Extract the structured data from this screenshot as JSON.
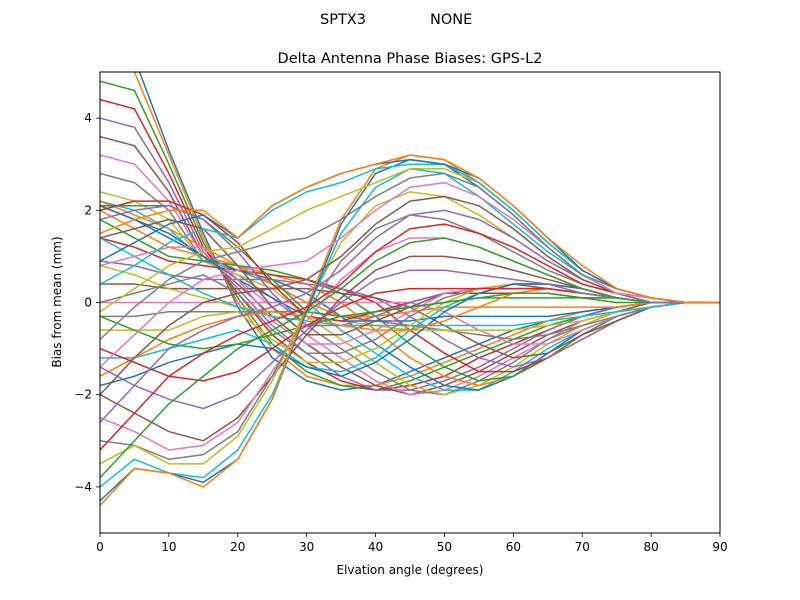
{
  "figure": {
    "suptitle_left": "SPTX3",
    "suptitle_right": "NONE"
  },
  "chart_data": {
    "type": "line",
    "title": "Delta Antenna Phase Biases: GPS-L2",
    "xlabel": "Elvation angle (degrees)",
    "ylabel": "Bias from mean (mm)",
    "xlim": [
      0,
      90
    ],
    "ylim": [
      -5,
      5
    ],
    "x_ticks": [
      "0",
      "10",
      "20",
      "30",
      "40",
      "50",
      "60",
      "70",
      "80",
      "90"
    ],
    "y_ticks": [
      "-4",
      "-2",
      "0",
      "2",
      "4"
    ],
    "grid": false,
    "legend": "none",
    "x": [
      0,
      5,
      10,
      15,
      20,
      25,
      30,
      35,
      40,
      45,
      50,
      55,
      60,
      65,
      70,
      75,
      80,
      85,
      90
    ],
    "palette": [
      "#1f77b4",
      "#ff7f0e",
      "#2ca02c",
      "#d62728",
      "#9467bd",
      "#8c564b",
      "#e377c2",
      "#7f7f7f",
      "#bcbd22",
      "#17becf"
    ],
    "series": [
      {
        "values": [
          5.6,
          5.3,
          3.3,
          1.5,
          -0.1,
          -1.2,
          -1.7,
          -1.9,
          -1.8,
          -1.5,
          -1.2,
          -0.9,
          -0.6,
          -0.4,
          -0.2,
          -0.1,
          0.0,
          0.0,
          0.0
        ]
      },
      {
        "values": [
          5.2,
          5.0,
          3.2,
          1.4,
          0.0,
          -1.0,
          -1.6,
          -1.8,
          -1.8,
          -1.6,
          -1.3,
          -1.0,
          -0.7,
          -0.4,
          -0.2,
          -0.1,
          0.0,
          0.0,
          0.0
        ]
      },
      {
        "values": [
          4.8,
          4.6,
          3.0,
          1.3,
          0.1,
          -0.9,
          -1.5,
          -1.8,
          -1.9,
          -1.7,
          -1.4,
          -1.1,
          -0.8,
          -0.5,
          -0.3,
          -0.1,
          0.0,
          0.0,
          0.0
        ]
      },
      {
        "values": [
          4.4,
          4.2,
          2.8,
          1.2,
          0.2,
          -0.7,
          -1.3,
          -1.7,
          -1.9,
          -1.8,
          -1.6,
          -1.2,
          -0.9,
          -0.6,
          -0.3,
          -0.1,
          0.0,
          0.0,
          0.0
        ]
      },
      {
        "values": [
          4.0,
          3.8,
          2.6,
          1.1,
          0.3,
          -0.5,
          -1.1,
          -1.6,
          -1.9,
          -1.9,
          -1.7,
          -1.4,
          -1.0,
          -0.6,
          -0.3,
          -0.1,
          0.0,
          0.0,
          0.0
        ]
      },
      {
        "values": [
          3.6,
          3.4,
          2.4,
          1.0,
          0.4,
          -0.3,
          -0.9,
          -1.4,
          -1.8,
          -2.0,
          -1.8,
          -1.5,
          -1.1,
          -0.7,
          -0.4,
          -0.2,
          0.0,
          0.0,
          0.0
        ]
      },
      {
        "values": [
          3.2,
          3.0,
          2.2,
          1.0,
          0.5,
          -0.1,
          -0.7,
          -1.2,
          -1.7,
          -2.0,
          -1.9,
          -1.6,
          -1.2,
          -0.8,
          -0.4,
          -0.2,
          -0.1,
          0.0,
          0.0
        ]
      },
      {
        "values": [
          2.8,
          2.6,
          2.0,
          0.9,
          0.6,
          0.1,
          -0.5,
          -1.0,
          -1.5,
          -1.9,
          -2.0,
          -1.7,
          -1.3,
          -0.8,
          -0.5,
          -0.2,
          -0.1,
          0.0,
          0.0
        ]
      },
      {
        "values": [
          2.4,
          2.2,
          1.8,
          0.9,
          0.6,
          0.3,
          -0.3,
          -0.8,
          -1.3,
          -1.8,
          -2.0,
          -1.8,
          -1.4,
          -0.9,
          -0.5,
          -0.2,
          -0.1,
          0.0,
          0.0
        ]
      },
      {
        "values": [
          2.2,
          2.0,
          1.6,
          0.9,
          0.7,
          0.4,
          0.0,
          -0.6,
          -1.1,
          -1.6,
          -1.9,
          -1.9,
          -1.5,
          -1.0,
          -0.6,
          -0.3,
          -0.1,
          0.0,
          0.0
        ]
      },
      {
        "values": [
          2.1,
          1.8,
          1.4,
          1.0,
          0.7,
          0.5,
          0.2,
          -0.3,
          -0.9,
          -1.4,
          -1.8,
          -1.9,
          -1.6,
          -1.1,
          -0.6,
          -0.3,
          -0.1,
          0.0,
          0.0
        ]
      },
      {
        "values": [
          2.0,
          1.6,
          1.2,
          1.0,
          0.8,
          0.6,
          0.4,
          0.0,
          -0.6,
          -1.2,
          -1.6,
          -1.8,
          -1.6,
          -1.2,
          -0.7,
          -0.3,
          -0.1,
          0.0,
          0.0
        ]
      },
      {
        "values": [
          1.8,
          1.4,
          1.0,
          0.9,
          0.8,
          0.7,
          0.5,
          0.2,
          -0.3,
          -0.9,
          -1.4,
          -1.7,
          -1.6,
          -1.2,
          -0.7,
          -0.3,
          -0.1,
          0.0,
          0.0
        ]
      },
      {
        "values": [
          1.4,
          1.2,
          0.9,
          0.8,
          0.7,
          0.6,
          0.5,
          0.3,
          0.0,
          -0.6,
          -1.1,
          -1.5,
          -1.5,
          -1.2,
          -0.8,
          -0.4,
          -0.1,
          0.0,
          0.0
        ]
      },
      {
        "values": [
          0.9,
          0.8,
          0.6,
          0.5,
          0.5,
          0.5,
          0.4,
          0.3,
          0.1,
          -0.3,
          -0.8,
          -1.2,
          -1.4,
          -1.2,
          -0.8,
          -0.4,
          -0.1,
          0.0,
          0.0
        ]
      },
      {
        "values": [
          0.4,
          0.4,
          0.3,
          0.3,
          0.3,
          0.3,
          0.3,
          0.2,
          0.1,
          -0.1,
          -0.5,
          -0.9,
          -1.2,
          -1.1,
          -0.7,
          -0.4,
          -0.1,
          0.0,
          0.0
        ]
      },
      {
        "values": [
          0.0,
          0.0,
          0.0,
          0.0,
          0.0,
          0.0,
          0.0,
          0.0,
          0.0,
          0.0,
          -0.2,
          -0.6,
          -0.9,
          -0.9,
          -0.6,
          -0.3,
          -0.1,
          0.0,
          0.0
        ]
      },
      {
        "values": [
          -0.3,
          -0.3,
          -0.2,
          -0.2,
          -0.2,
          -0.2,
          -0.2,
          -0.3,
          -0.4,
          -0.5,
          -0.6,
          -0.7,
          -0.8,
          -0.7,
          -0.5,
          -0.3,
          -0.1,
          0.0,
          0.0
        ]
      },
      {
        "values": [
          0.8,
          0.6,
          0.3,
          0.1,
          -0.1,
          -0.2,
          -0.3,
          -0.4,
          -0.5,
          -0.6,
          -0.6,
          -0.6,
          -0.6,
          -0.5,
          -0.4,
          -0.2,
          -0.1,
          0.0,
          0.0
        ]
      },
      {
        "values": [
          1.4,
          1.0,
          0.6,
          0.2,
          -0.1,
          -0.3,
          -0.4,
          -0.5,
          -0.5,
          -0.5,
          -0.5,
          -0.5,
          -0.5,
          -0.4,
          -0.3,
          -0.2,
          -0.1,
          0.0,
          0.0
        ]
      },
      {
        "values": [
          2.1,
          1.8,
          1.5,
          1.0,
          0.5,
          0.1,
          -0.3,
          -0.4,
          -0.4,
          -0.4,
          -0.3,
          -0.3,
          -0.3,
          -0.3,
          -0.2,
          -0.1,
          0.0,
          0.0,
          0.0
        ]
      },
      {
        "values": [
          2.2,
          1.9,
          1.6,
          1.2,
          0.8,
          0.4,
          0.0,
          -0.3,
          -0.3,
          -0.2,
          -0.1,
          -0.1,
          -0.1,
          -0.1,
          -0.1,
          -0.1,
          0.0,
          0.0,
          0.0
        ]
      },
      {
        "values": [
          2.1,
          2.1,
          2.1,
          1.8,
          1.2,
          0.5,
          -0.2,
          -0.3,
          -0.2,
          -0.1,
          0.0,
          0.1,
          0.1,
          0.1,
          0.1,
          0.0,
          0.0,
          0.0,
          0.0
        ]
      },
      {
        "values": [
          2.0,
          2.2,
          2.2,
          1.9,
          1.3,
          0.4,
          -0.3,
          -0.4,
          -0.2,
          0.0,
          0.2,
          0.2,
          0.2,
          0.2,
          0.1,
          0.1,
          0.0,
          0.0,
          0.0
        ]
      },
      {
        "values": [
          1.8,
          2.0,
          2.1,
          1.8,
          1.1,
          0.2,
          -0.5,
          -0.5,
          -0.3,
          0.0,
          0.2,
          0.3,
          0.3,
          0.3,
          0.2,
          0.1,
          0.0,
          0.0,
          0.0
        ]
      },
      {
        "values": [
          1.4,
          1.6,
          1.8,
          1.6,
          0.8,
          -0.1,
          -0.7,
          -0.7,
          -0.4,
          -0.1,
          0.2,
          0.3,
          0.4,
          0.3,
          0.2,
          0.1,
          0.0,
          0.0,
          0.0
        ]
      },
      {
        "values": [
          0.8,
          1.0,
          1.2,
          1.2,
          0.5,
          -0.4,
          -0.9,
          -0.9,
          -0.6,
          -0.2,
          0.2,
          0.3,
          0.4,
          0.4,
          0.3,
          0.1,
          0.0,
          0.0,
          0.0
        ]
      },
      {
        "values": [
          0.0,
          0.2,
          0.4,
          0.6,
          0.2,
          -0.6,
          -1.1,
          -1.1,
          -0.8,
          -0.3,
          0.1,
          0.3,
          0.4,
          0.4,
          0.3,
          0.1,
          0.0,
          0.0,
          0.0
        ]
      },
      {
        "values": [
          -0.6,
          -0.6,
          -0.6,
          -0.3,
          -0.2,
          -0.8,
          -1.3,
          -1.3,
          -1.0,
          -0.5,
          0.0,
          0.3,
          0.4,
          0.4,
          0.3,
          0.1,
          0.0,
          0.0,
          0.0
        ]
      },
      {
        "values": [
          -1.2,
          -1.2,
          -1.0,
          -0.8,
          -0.6,
          -0.9,
          -1.4,
          -1.5,
          -1.2,
          -0.6,
          -0.1,
          0.2,
          0.4,
          0.4,
          0.3,
          0.1,
          0.0,
          0.0,
          0.0
        ]
      },
      {
        "values": [
          -1.8,
          -1.6,
          -1.3,
          -1.1,
          -0.9,
          -1.0,
          -1.4,
          -1.6,
          -1.3,
          -0.8,
          -0.2,
          0.2,
          0.4,
          0.4,
          0.3,
          0.1,
          0.0,
          0.0,
          0.0
        ]
      },
      {
        "values": [
          -1.6,
          -1.2,
          -0.8,
          -0.5,
          -0.3,
          -0.2,
          -0.3,
          -0.5,
          -0.6,
          -0.6,
          -0.4,
          -0.1,
          0.2,
          0.3,
          0.2,
          0.1,
          0.0,
          0.0,
          0.0
        ]
      },
      {
        "values": [
          -0.3,
          -0.6,
          -0.9,
          -1.0,
          -0.9,
          -0.7,
          -0.5,
          -0.3,
          -0.2,
          -0.1,
          0.0,
          0.1,
          0.2,
          0.2,
          0.1,
          0.1,
          0.0,
          0.0,
          0.0
        ]
      },
      {
        "values": [
          -1.0,
          -1.3,
          -1.6,
          -1.7,
          -1.5,
          -1.0,
          -0.5,
          -0.1,
          0.2,
          0.3,
          0.3,
          0.3,
          0.3,
          0.3,
          0.2,
          0.1,
          0.0,
          0.0,
          0.0
        ]
      },
      {
        "values": [
          -1.4,
          -1.8,
          -2.1,
          -2.3,
          -2.0,
          -1.3,
          -0.6,
          0.0,
          0.5,
          0.7,
          0.7,
          0.6,
          0.5,
          0.4,
          0.2,
          0.1,
          0.0,
          0.0,
          0.0
        ]
      },
      {
        "values": [
          -2.0,
          -2.4,
          -2.8,
          -3.0,
          -2.5,
          -1.6,
          -0.7,
          0.1,
          0.7,
          1.0,
          1.0,
          0.9,
          0.7,
          0.5,
          0.3,
          0.1,
          0.0,
          0.0,
          0.0
        ]
      },
      {
        "values": [
          -2.5,
          -2.8,
          -3.2,
          -3.1,
          -2.6,
          -1.5,
          -0.4,
          0.5,
          1.1,
          1.4,
          1.4,
          1.2,
          0.9,
          0.6,
          0.3,
          0.1,
          0.0,
          0.0,
          0.0
        ]
      },
      {
        "values": [
          -3.0,
          -3.1,
          -3.4,
          -3.3,
          -2.8,
          -1.6,
          -0.2,
          0.9,
          1.6,
          1.9,
          1.8,
          1.5,
          1.1,
          0.7,
          0.4,
          0.2,
          0.0,
          0.0,
          0.0
        ]
      },
      {
        "values": [
          -3.5,
          -3.1,
          -3.5,
          -3.5,
          -2.9,
          -1.7,
          -0.1,
          1.3,
          2.1,
          2.4,
          2.3,
          1.9,
          1.4,
          0.9,
          0.5,
          0.2,
          0.0,
          0.0,
          0.0
        ]
      },
      {
        "values": [
          -4.0,
          -3.4,
          -3.7,
          -3.8,
          -3.2,
          -2.0,
          -0.2,
          1.5,
          2.5,
          2.9,
          2.8,
          2.3,
          1.7,
          1.1,
          0.6,
          0.2,
          0.1,
          0.0,
          0.0
        ]
      },
      {
        "values": [
          -4.3,
          -3.6,
          -3.7,
          -3.9,
          -3.4,
          -2.1,
          -0.2,
          1.7,
          2.8,
          3.1,
          3.0,
          2.5,
          1.9,
          1.2,
          0.6,
          0.3,
          0.1,
          0.0,
          0.0
        ]
      },
      {
        "values": [
          -4.4,
          -3.6,
          -3.7,
          -4.0,
          -3.4,
          -2.1,
          -0.1,
          1.8,
          2.9,
          3.2,
          3.1,
          2.6,
          2.0,
          1.3,
          0.7,
          0.3,
          0.1,
          0.0,
          0.0
        ]
      },
      {
        "values": [
          -3.8,
          -3.0,
          -2.2,
          -1.6,
          -1.0,
          -0.6,
          -0.2,
          0.3,
          0.9,
          1.3,
          1.4,
          1.2,
          0.9,
          0.6,
          0.3,
          0.1,
          0.0,
          0.0,
          0.0
        ]
      },
      {
        "values": [
          -3.2,
          -2.4,
          -1.6,
          -1.1,
          -0.7,
          -0.4,
          -0.1,
          0.4,
          1.1,
          1.6,
          1.7,
          1.5,
          1.2,
          0.8,
          0.4,
          0.2,
          0.0,
          0.0,
          0.0
        ]
      },
      {
        "values": [
          -2.6,
          -1.8,
          -1.0,
          -0.6,
          -0.3,
          -0.1,
          0.2,
          0.7,
          1.4,
          1.9,
          2.0,
          1.8,
          1.4,
          0.9,
          0.5,
          0.2,
          0.0,
          0.0,
          0.0
        ]
      },
      {
        "values": [
          -2.0,
          -1.2,
          -0.5,
          0.0,
          0.2,
          0.3,
          0.5,
          1.0,
          1.7,
          2.2,
          2.3,
          2.1,
          1.6,
          1.0,
          0.5,
          0.2,
          0.1,
          0.0,
          0.0
        ]
      },
      {
        "values": [
          -1.4,
          -0.7,
          0.0,
          0.5,
          0.7,
          0.8,
          0.9,
          1.4,
          2.0,
          2.5,
          2.6,
          2.3,
          1.8,
          1.2,
          0.6,
          0.2,
          0.1,
          0.0,
          0.0
        ]
      },
      {
        "values": [
          -0.8,
          -0.1,
          0.5,
          0.9,
          1.1,
          1.3,
          1.4,
          1.8,
          2.3,
          2.7,
          2.8,
          2.5,
          1.9,
          1.2,
          0.6,
          0.3,
          0.1,
          0.0,
          0.0
        ]
      },
      {
        "values": [
          -0.2,
          0.3,
          0.8,
          1.1,
          1.2,
          1.6,
          2.0,
          2.3,
          2.6,
          2.9,
          2.9,
          2.6,
          2.0,
          1.3,
          0.7,
          0.3,
          0.1,
          0.0,
          0.0
        ]
      },
      {
        "values": [
          0.4,
          0.8,
          1.3,
          1.6,
          1.4,
          2.0,
          2.4,
          2.6,
          2.9,
          3.0,
          3.0,
          2.6,
          2.0,
          1.3,
          0.7,
          0.3,
          0.1,
          0.0,
          0.0
        ]
      },
      {
        "values": [
          0.9,
          1.3,
          1.7,
          1.9,
          1.4,
          2.1,
          2.5,
          2.8,
          3.0,
          3.1,
          3.0,
          2.7,
          2.1,
          1.4,
          0.7,
          0.3,
          0.1,
          0.0,
          0.0
        ]
      },
      {
        "values": [
          1.5,
          1.8,
          2.0,
          2.0,
          1.4,
          2.1,
          2.5,
          2.8,
          3.0,
          3.2,
          3.1,
          2.7,
          2.1,
          1.4,
          0.8,
          0.3,
          0.1,
          0.0,
          0.0
        ]
      }
    ]
  }
}
